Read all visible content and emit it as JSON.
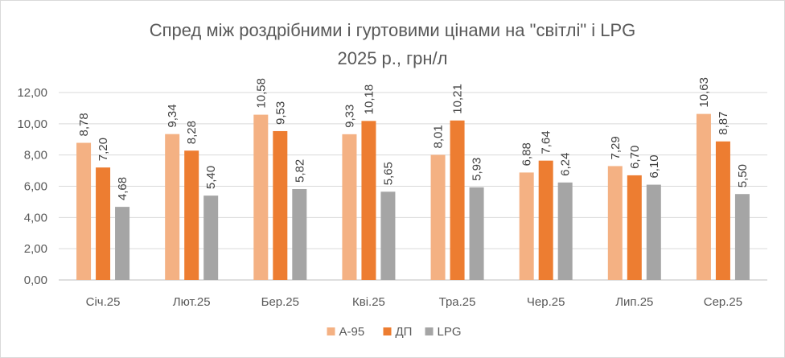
{
  "chart_data": {
    "type": "bar",
    "title": "Спред між роздрібними і гуртовими цінами на \"світлі\" і LPG",
    "subtitle": "2025 р., грн/л",
    "categories": [
      "Січ.25",
      "Лют.25",
      "Бер.25",
      "Кві.25",
      "Тра.25",
      "Чер.25",
      "Лип.25",
      "Сер.25"
    ],
    "series": [
      {
        "name": "А-95",
        "color": "#f4b183",
        "values": [
          8.78,
          9.34,
          10.58,
          9.33,
          8.01,
          6.88,
          7.29,
          10.63
        ]
      },
      {
        "name": "ДП",
        "color": "#ed7d31",
        "values": [
          7.2,
          8.28,
          9.53,
          10.18,
          10.21,
          7.64,
          6.7,
          8.87
        ]
      },
      {
        "name": "LPG",
        "color": "#a5a5a5",
        "values": [
          4.68,
          5.4,
          5.82,
          5.65,
          5.93,
          6.24,
          6.1,
          5.5
        ]
      }
    ],
    "ylim": [
      0,
      12
    ],
    "yticks": [
      "0,00",
      "2,00",
      "4,00",
      "6,00",
      "8,00",
      "10,00",
      "12,00"
    ],
    "data_labels": [
      [
        "8,78",
        "9,34",
        "10,58",
        "9,33",
        "8,01",
        "6,88",
        "7,29",
        "10,63"
      ],
      [
        "7,20",
        "8,28",
        "9,53",
        "10,18",
        "10,21",
        "7,64",
        "6,70",
        "8,87"
      ],
      [
        "4,68",
        "5,40",
        "5,82",
        "5,65",
        "5,93",
        "6,24",
        "6,10",
        "5,50"
      ]
    ],
    "grid": true,
    "legend_position": "bottom"
  }
}
